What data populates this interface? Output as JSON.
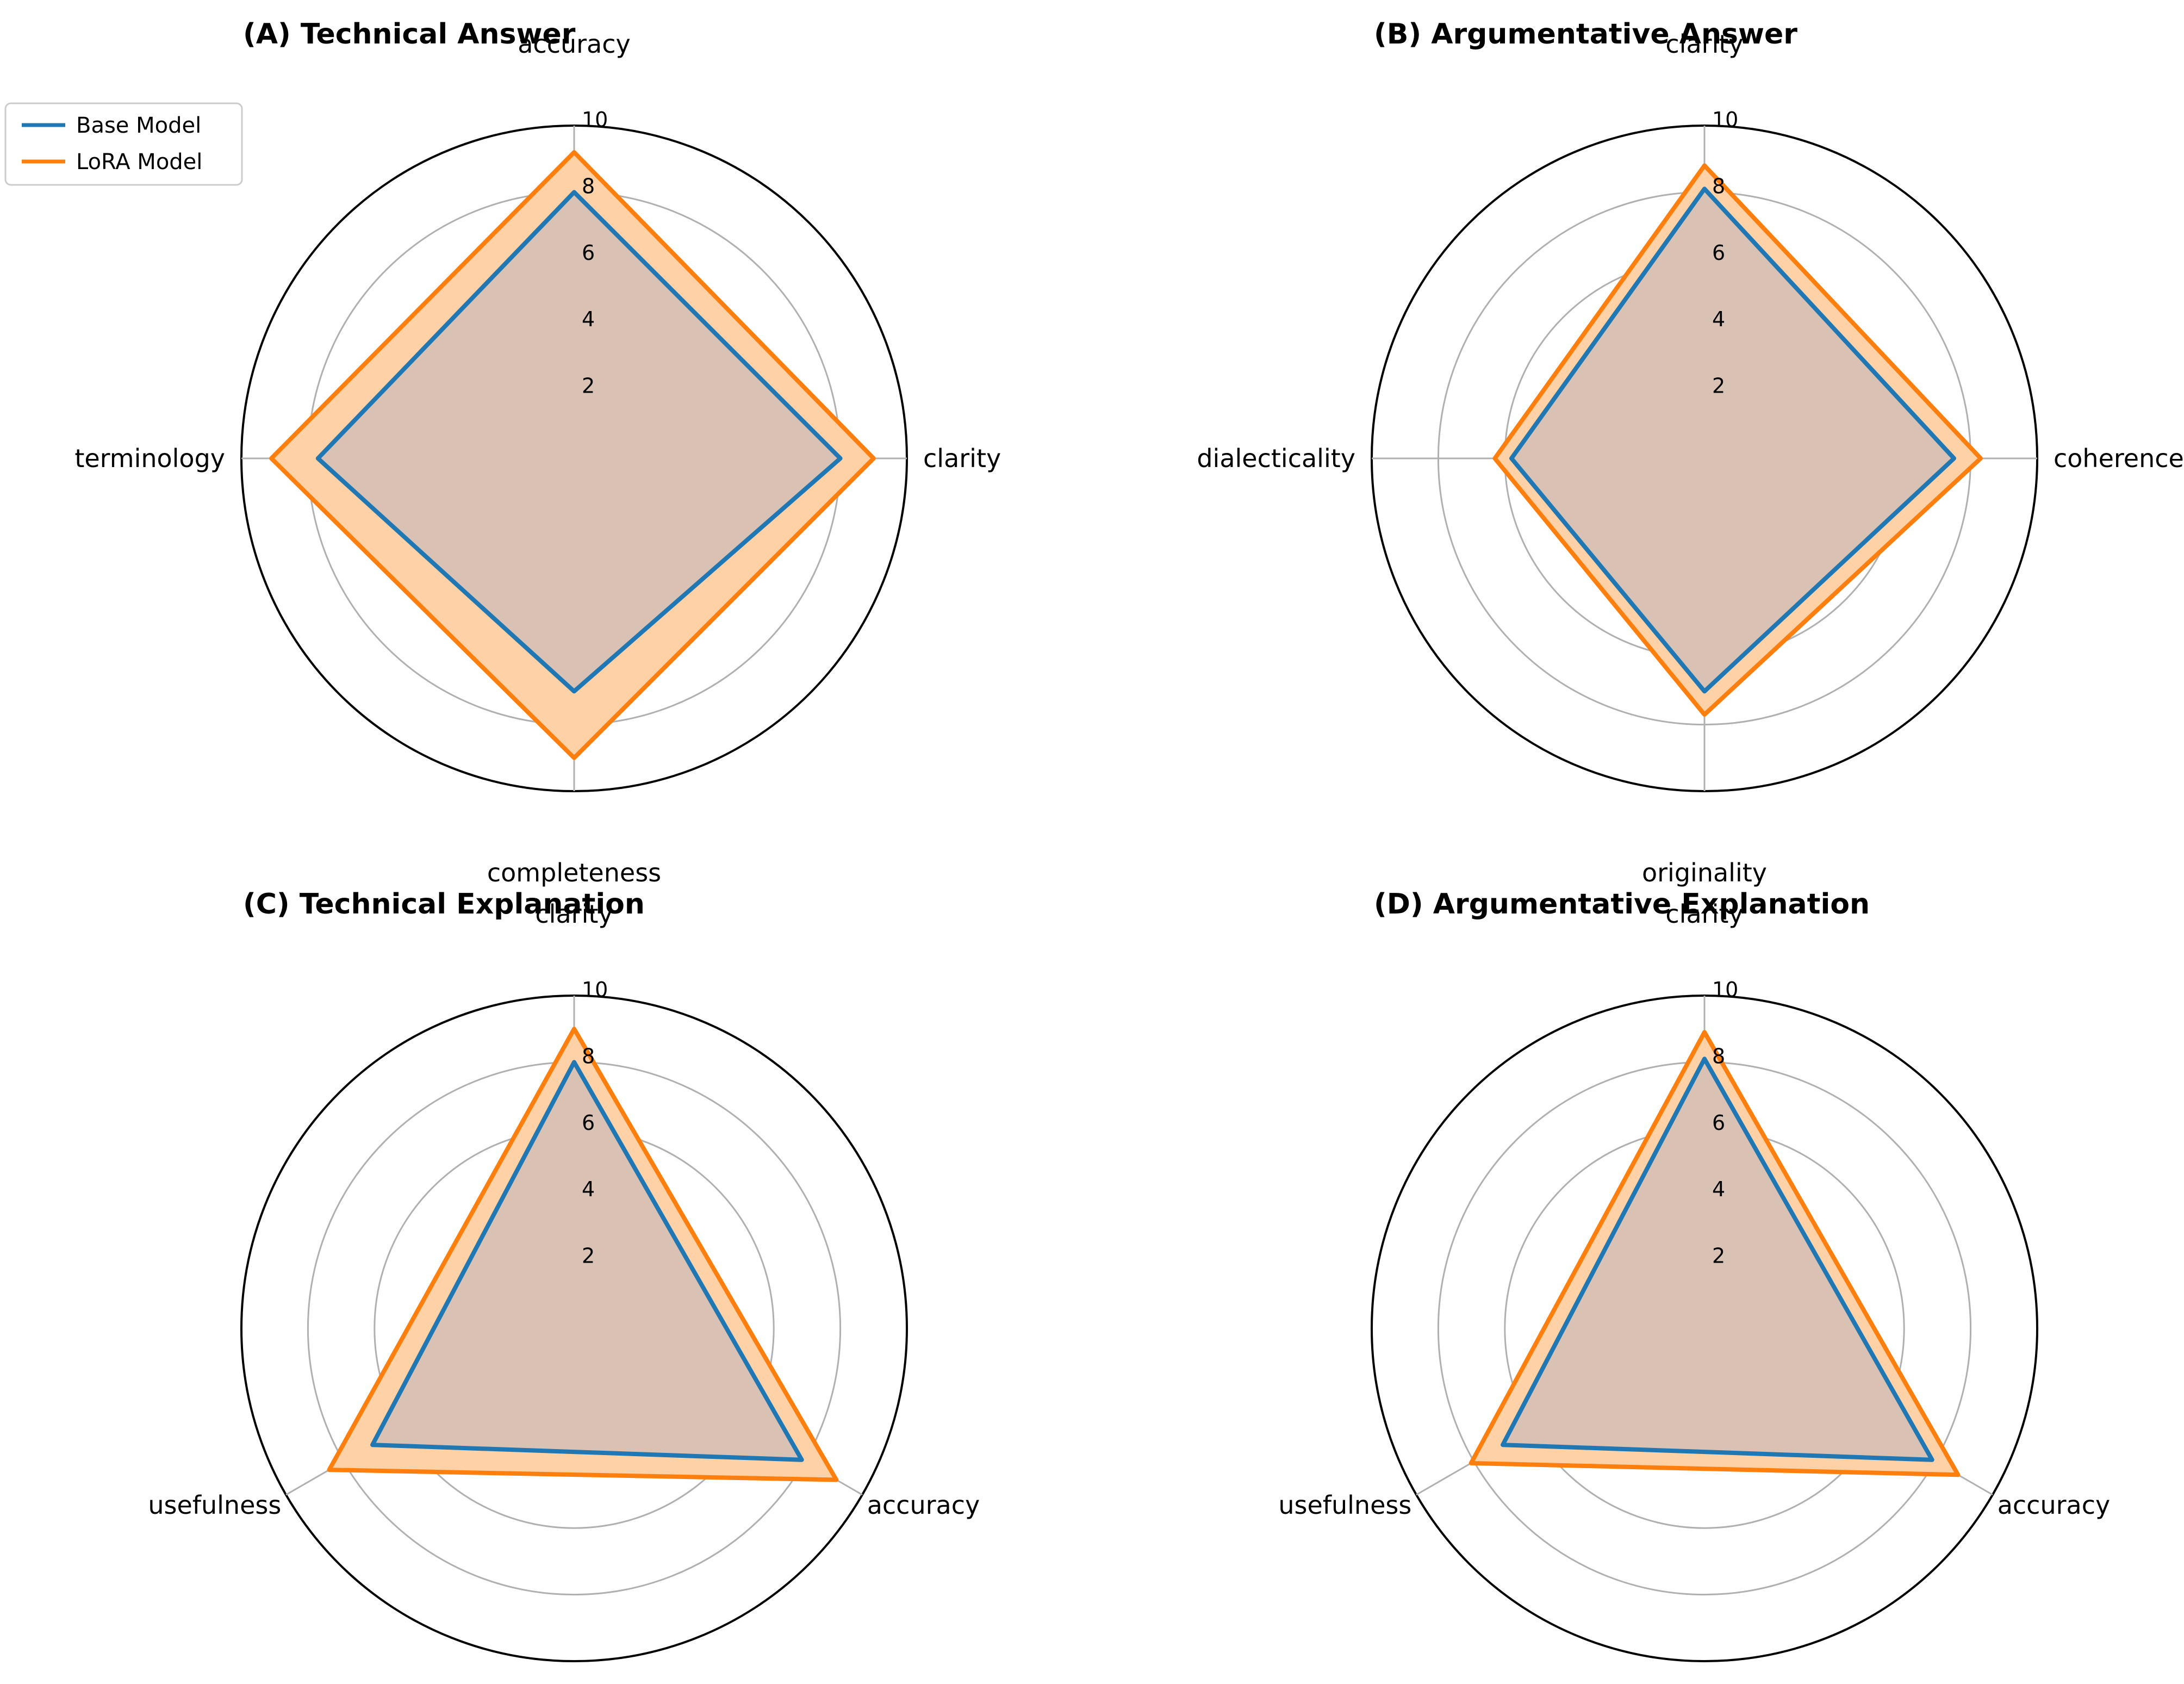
{
  "chart_data": [
    {
      "type": "radar",
      "title": "(A) Technical Answer",
      "axes": [
        "accuracy",
        "clarity",
        "completeness",
        "terminology"
      ],
      "rlim": [
        0,
        10
      ],
      "rticks": [
        "2",
        "4",
        "6",
        "8",
        "10"
      ],
      "series": [
        {
          "name": "Base Model",
          "values": [
            8.0,
            8.0,
            7.0,
            7.7
          ]
        },
        {
          "name": "LoRA Model",
          "values": [
            9.2,
            9.0,
            9.0,
            9.1
          ]
        }
      ]
    },
    {
      "type": "radar",
      "title": "(B) Argumentative Answer",
      "axes": [
        "clarity",
        "coherence",
        "originality",
        "dialecticality"
      ],
      "rlim": [
        0,
        10
      ],
      "rticks": [
        "2",
        "4",
        "6",
        "8",
        "10"
      ],
      "series": [
        {
          "name": "Base Model",
          "values": [
            8.1,
            7.5,
            7.0,
            5.8
          ]
        },
        {
          "name": "LoRA Model",
          "values": [
            8.8,
            8.3,
            7.7,
            6.3
          ]
        }
      ]
    },
    {
      "type": "radar",
      "title": "(C) Technical Explanation",
      "axes": [
        "clarity",
        "accuracy",
        "usefulness"
      ],
      "rlim": [
        0,
        10
      ],
      "rticks": [
        "2",
        "4",
        "6",
        "8",
        "10"
      ],
      "series": [
        {
          "name": "Base Model",
          "values": [
            8.0,
            7.9,
            7.0
          ]
        },
        {
          "name": "LoRA Model",
          "values": [
            9.0,
            9.1,
            8.5
          ]
        }
      ]
    },
    {
      "type": "radar",
      "title": "(D) Argumentative Explanation",
      "axes": [
        "clarity",
        "accuracy",
        "usefulness"
      ],
      "rlim": [
        0,
        10
      ],
      "rticks": [
        "2",
        "4",
        "6",
        "8",
        "10"
      ],
      "series": [
        {
          "name": "Base Model",
          "values": [
            8.1,
            7.9,
            7.0
          ]
        },
        {
          "name": "LoRA Model",
          "values": [
            8.9,
            8.8,
            8.1
          ]
        }
      ]
    }
  ],
  "legend": {
    "items": [
      {
        "label": "Base Model",
        "color": "#1f77b4"
      },
      {
        "label": "LoRA Model",
        "color": "#ff7f0e"
      }
    ],
    "placement": "top-left"
  },
  "colors": {
    "base_line": "#1f77b4",
    "lora_line": "#ff7f0e",
    "lora_fill": "#ffd1a6",
    "overlap_fill": "#d9c2b3",
    "grid": "#b0b0b0",
    "outer_ring": "#000000"
  }
}
